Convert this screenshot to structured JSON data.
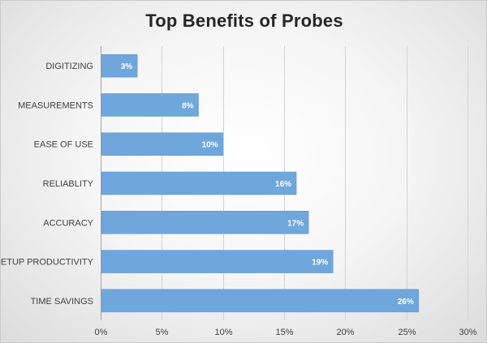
{
  "chart_data": {
    "type": "bar",
    "orientation": "horizontal",
    "title": "Top Benefits of Probes",
    "categories": [
      "DIGITIZING",
      "MEASUREMENTS",
      "EASE OF USE",
      "RELIABLITY",
      "ACCURACY",
      "SETUP PRODUCTIVITY",
      "TIME SAVINGS"
    ],
    "values": [
      3,
      8,
      10,
      16,
      17,
      19,
      26
    ],
    "data_labels": [
      "3%",
      "8%",
      "10%",
      "16%",
      "17%",
      "19%",
      "26%"
    ],
    "xlim": [
      0,
      30
    ],
    "x_ticks": [
      0,
      5,
      10,
      15,
      20,
      25,
      30
    ],
    "x_tick_labels": [
      "0%",
      "5%",
      "10%",
      "15%",
      "20%",
      "25%",
      "30%"
    ],
    "xlabel": "",
    "ylabel": "",
    "grid": "vertical",
    "legend": "none",
    "colors": {
      "bar": "#6fa6dc",
      "bar_edge": "#5b95cf",
      "grid": "#d3d3d3",
      "axis": "#a6a6a6"
    }
  }
}
